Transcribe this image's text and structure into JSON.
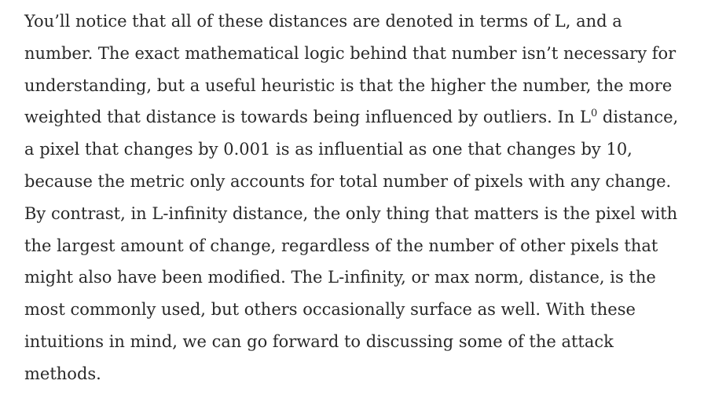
{
  "article": {
    "paragraph": {
      "line1": "You’ll notice that all of these distances are denoted in terms of L, and a",
      "line2": "number. The exact mathematical logic behind that number isn’t necessary for",
      "line3": "understanding, but a useful heuristic is that the higher the number, the more",
      "line4_before": "weighted that distance is towards being influenced by outliers. In L",
      "line4_sup": "0",
      "line4_after": " distance,",
      "line5": "a pixel that changes by 0.001 is as influential as one that changes by 10,",
      "line6": "because the metric only accounts for total number of pixels with any change.",
      "line7": "By contrast, in L-infinity distance, the only thing that matters is the pixel with",
      "line8": "the largest amount of change, regardless of the number of other pixels that",
      "line9": "might also have been modified. The L-infinity, or max norm, distance, is the",
      "line10": "most commonly used, but others occasionally surface as well. With these",
      "line11": "intuitions in mind, we can go forward to discussing some of the attack",
      "line12": "methods."
    }
  }
}
